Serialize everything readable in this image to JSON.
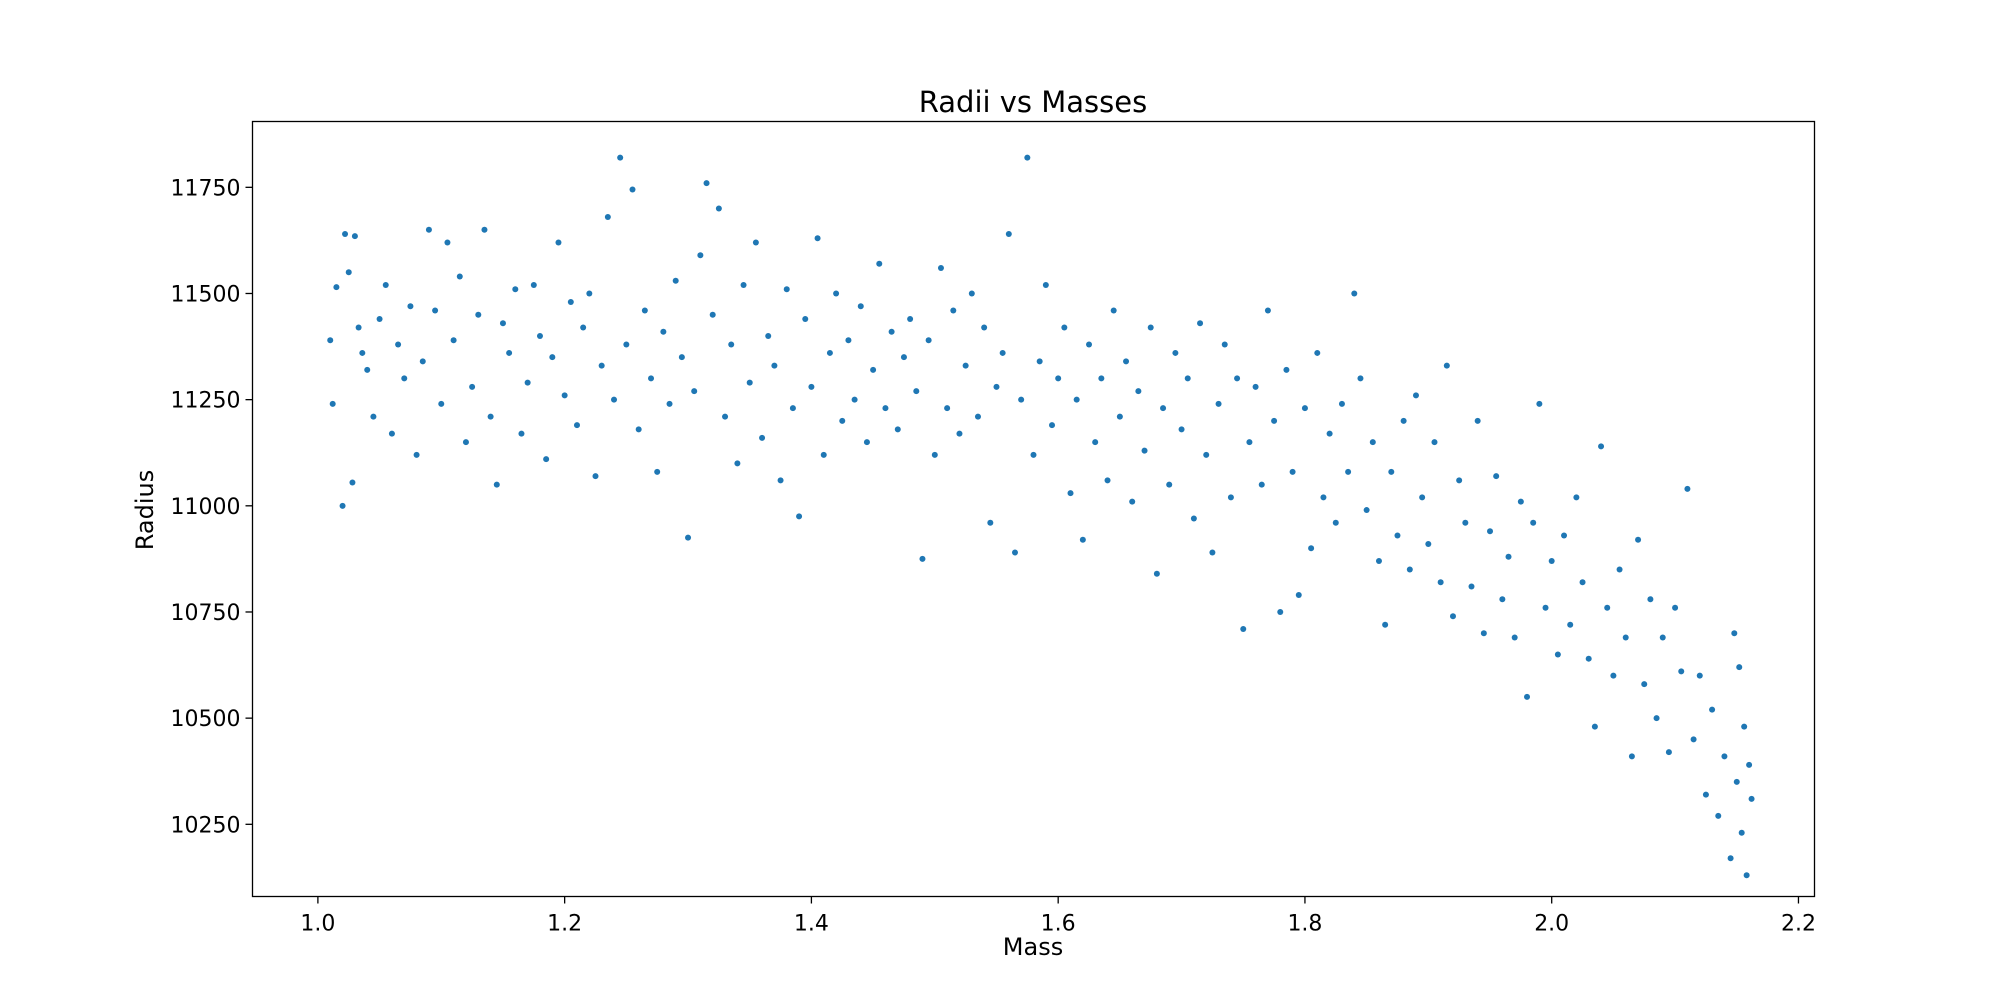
{
  "chart_data": {
    "type": "scatter",
    "title": "Radii vs Masses",
    "xlabel": "Mass",
    "ylabel": "Radius",
    "xlim": [
      0.947,
      2.213
    ],
    "ylim": [
      10080,
      11905
    ],
    "xticks": [
      1.0,
      1.2,
      1.4,
      1.6,
      1.8,
      2.0,
      2.2
    ],
    "xtick_labels": [
      "1.0",
      "1.2",
      "1.4",
      "1.6",
      "1.8",
      "2.0",
      "2.2"
    ],
    "yticks": [
      10250,
      10500,
      10750,
      11000,
      11250,
      11500,
      11750
    ],
    "ytick_labels": [
      "10250",
      "10500",
      "10750",
      "11000",
      "11250",
      "11500",
      "11750"
    ],
    "grid": false,
    "marker_color": "#1f77b4",
    "points": [
      [
        1.01,
        11390
      ],
      [
        1.012,
        11240
      ],
      [
        1.015,
        11515
      ],
      [
        1.02,
        11000
      ],
      [
        1.022,
        11640
      ],
      [
        1.025,
        11550
      ],
      [
        1.028,
        11055
      ],
      [
        1.03,
        11635
      ],
      [
        1.033,
        11420
      ],
      [
        1.036,
        11360
      ],
      [
        1.04,
        11320
      ],
      [
        1.045,
        11210
      ],
      [
        1.05,
        11440
      ],
      [
        1.055,
        11520
      ],
      [
        1.06,
        11170
      ],
      [
        1.065,
        11380
      ],
      [
        1.07,
        11300
      ],
      [
        1.075,
        11470
      ],
      [
        1.08,
        11120
      ],
      [
        1.085,
        11340
      ],
      [
        1.09,
        11650
      ],
      [
        1.095,
        11460
      ],
      [
        1.1,
        11240
      ],
      [
        1.105,
        11620
      ],
      [
        1.11,
        11390
      ],
      [
        1.115,
        11540
      ],
      [
        1.12,
        11150
      ],
      [
        1.125,
        11280
      ],
      [
        1.13,
        11450
      ],
      [
        1.135,
        11650
      ],
      [
        1.14,
        11210
      ],
      [
        1.145,
        11050
      ],
      [
        1.15,
        11430
      ],
      [
        1.155,
        11360
      ],
      [
        1.16,
        11510
      ],
      [
        1.165,
        11170
      ],
      [
        1.17,
        11290
      ],
      [
        1.175,
        11520
      ],
      [
        1.18,
        11400
      ],
      [
        1.185,
        11110
      ],
      [
        1.19,
        11350
      ],
      [
        1.195,
        11620
      ],
      [
        1.2,
        11260
      ],
      [
        1.205,
        11480
      ],
      [
        1.21,
        11190
      ],
      [
        1.215,
        11420
      ],
      [
        1.22,
        11500
      ],
      [
        1.225,
        11070
      ],
      [
        1.23,
        11330
      ],
      [
        1.235,
        11680
      ],
      [
        1.24,
        11250
      ],
      [
        1.245,
        11820
      ],
      [
        1.25,
        11380
      ],
      [
        1.255,
        11745
      ],
      [
        1.26,
        11180
      ],
      [
        1.265,
        11460
      ],
      [
        1.27,
        11300
      ],
      [
        1.275,
        11080
      ],
      [
        1.28,
        11410
      ],
      [
        1.285,
        11240
      ],
      [
        1.29,
        11530
      ],
      [
        1.295,
        11350
      ],
      [
        1.3,
        10925
      ],
      [
        1.305,
        11270
      ],
      [
        1.31,
        11590
      ],
      [
        1.315,
        11760
      ],
      [
        1.32,
        11450
      ],
      [
        1.325,
        11700
      ],
      [
        1.33,
        11210
      ],
      [
        1.335,
        11380
      ],
      [
        1.34,
        11100
      ],
      [
        1.345,
        11520
      ],
      [
        1.35,
        11290
      ],
      [
        1.355,
        11620
      ],
      [
        1.36,
        11160
      ],
      [
        1.365,
        11400
      ],
      [
        1.37,
        11330
      ],
      [
        1.375,
        11060
      ],
      [
        1.38,
        11510
      ],
      [
        1.385,
        11230
      ],
      [
        1.39,
        10975
      ],
      [
        1.395,
        11440
      ],
      [
        1.4,
        11280
      ],
      [
        1.405,
        11630
      ],
      [
        1.41,
        11120
      ],
      [
        1.415,
        11360
      ],
      [
        1.42,
        11500
      ],
      [
        1.425,
        11200
      ],
      [
        1.43,
        11390
      ],
      [
        1.435,
        11250
      ],
      [
        1.44,
        11470
      ],
      [
        1.445,
        11150
      ],
      [
        1.45,
        11320
      ],
      [
        1.455,
        11570
      ],
      [
        1.46,
        11230
      ],
      [
        1.465,
        11410
      ],
      [
        1.47,
        11180
      ],
      [
        1.475,
        11350
      ],
      [
        1.48,
        11440
      ],
      [
        1.485,
        11270
      ],
      [
        1.49,
        10875
      ],
      [
        1.495,
        11390
      ],
      [
        1.5,
        11120
      ],
      [
        1.505,
        11560
      ],
      [
        1.51,
        11230
      ],
      [
        1.515,
        11460
      ],
      [
        1.52,
        11170
      ],
      [
        1.525,
        11330
      ],
      [
        1.53,
        11500
      ],
      [
        1.535,
        11210
      ],
      [
        1.54,
        11420
      ],
      [
        1.545,
        10960
      ],
      [
        1.55,
        11280
      ],
      [
        1.555,
        11360
      ],
      [
        1.56,
        11640
      ],
      [
        1.565,
        10890
      ],
      [
        1.57,
        11250
      ],
      [
        1.575,
        11820
      ],
      [
        1.58,
        11120
      ],
      [
        1.585,
        11340
      ],
      [
        1.59,
        11520
      ],
      [
        1.595,
        11190
      ],
      [
        1.6,
        11300
      ],
      [
        1.605,
        11420
      ],
      [
        1.61,
        11030
      ],
      [
        1.615,
        11250
      ],
      [
        1.62,
        10920
      ],
      [
        1.625,
        11380
      ],
      [
        1.63,
        11150
      ],
      [
        1.635,
        11300
      ],
      [
        1.64,
        11060
      ],
      [
        1.645,
        11460
      ],
      [
        1.65,
        11210
      ],
      [
        1.655,
        11340
      ],
      [
        1.66,
        11010
      ],
      [
        1.665,
        11270
      ],
      [
        1.67,
        11130
      ],
      [
        1.675,
        11420
      ],
      [
        1.68,
        10840
      ],
      [
        1.685,
        11230
      ],
      [
        1.69,
        11050
      ],
      [
        1.695,
        11360
      ],
      [
        1.7,
        11180
      ],
      [
        1.705,
        11300
      ],
      [
        1.71,
        10970
      ],
      [
        1.715,
        11430
      ],
      [
        1.72,
        11120
      ],
      [
        1.725,
        10890
      ],
      [
        1.73,
        11240
      ],
      [
        1.735,
        11380
      ],
      [
        1.74,
        11020
      ],
      [
        1.745,
        11300
      ],
      [
        1.75,
        10710
      ],
      [
        1.755,
        11150
      ],
      [
        1.76,
        11280
      ],
      [
        1.765,
        11050
      ],
      [
        1.77,
        11460
      ],
      [
        1.775,
        11200
      ],
      [
        1.78,
        10750
      ],
      [
        1.785,
        11320
      ],
      [
        1.79,
        11080
      ],
      [
        1.795,
        10790
      ],
      [
        1.8,
        11230
      ],
      [
        1.805,
        10900
      ],
      [
        1.81,
        11360
      ],
      [
        1.815,
        11020
      ],
      [
        1.82,
        11170
      ],
      [
        1.825,
        10960
      ],
      [
        1.83,
        11240
      ],
      [
        1.835,
        11080
      ],
      [
        1.84,
        11500
      ],
      [
        1.845,
        11300
      ],
      [
        1.85,
        10990
      ],
      [
        1.855,
        11150
      ],
      [
        1.86,
        10870
      ],
      [
        1.865,
        10720
      ],
      [
        1.87,
        11080
      ],
      [
        1.875,
        10930
      ],
      [
        1.88,
        11200
      ],
      [
        1.885,
        10850
      ],
      [
        1.89,
        11260
      ],
      [
        1.895,
        11020
      ],
      [
        1.9,
        10910
      ],
      [
        1.905,
        11150
      ],
      [
        1.91,
        10820
      ],
      [
        1.915,
        11330
      ],
      [
        1.92,
        10740
      ],
      [
        1.925,
        11060
      ],
      [
        1.93,
        10960
      ],
      [
        1.935,
        10810
      ],
      [
        1.94,
        11200
      ],
      [
        1.945,
        10700
      ],
      [
        1.95,
        10940
      ],
      [
        1.955,
        11070
      ],
      [
        1.96,
        10780
      ],
      [
        1.965,
        10880
      ],
      [
        1.97,
        10690
      ],
      [
        1.975,
        11010
      ],
      [
        1.98,
        10550
      ],
      [
        1.985,
        10960
      ],
      [
        1.99,
        11240
      ],
      [
        1.995,
        10760
      ],
      [
        2.0,
        10870
      ],
      [
        2.005,
        10650
      ],
      [
        2.01,
        10930
      ],
      [
        2.015,
        10720
      ],
      [
        2.02,
        11020
      ],
      [
        2.025,
        10820
      ],
      [
        2.03,
        10640
      ],
      [
        2.035,
        10480
      ],
      [
        2.04,
        11140
      ],
      [
        2.045,
        10760
      ],
      [
        2.05,
        10600
      ],
      [
        2.055,
        10850
      ],
      [
        2.06,
        10690
      ],
      [
        2.065,
        10410
      ],
      [
        2.07,
        10920
      ],
      [
        2.075,
        10580
      ],
      [
        2.08,
        10780
      ],
      [
        2.085,
        10500
      ],
      [
        2.09,
        10690
      ],
      [
        2.095,
        10420
      ],
      [
        2.1,
        10760
      ],
      [
        2.105,
        10610
      ],
      [
        2.11,
        11040
      ],
      [
        2.115,
        10450
      ],
      [
        2.12,
        10600
      ],
      [
        2.125,
        10320
      ],
      [
        2.13,
        10520
      ],
      [
        2.135,
        10270
      ],
      [
        2.14,
        10410
      ],
      [
        2.145,
        10170
      ],
      [
        2.148,
        10700
      ],
      [
        2.15,
        10350
      ],
      [
        2.152,
        10620
      ],
      [
        2.154,
        10230
      ],
      [
        2.156,
        10480
      ],
      [
        2.158,
        10130
      ],
      [
        2.16,
        10390
      ],
      [
        2.162,
        10310
      ]
    ]
  }
}
